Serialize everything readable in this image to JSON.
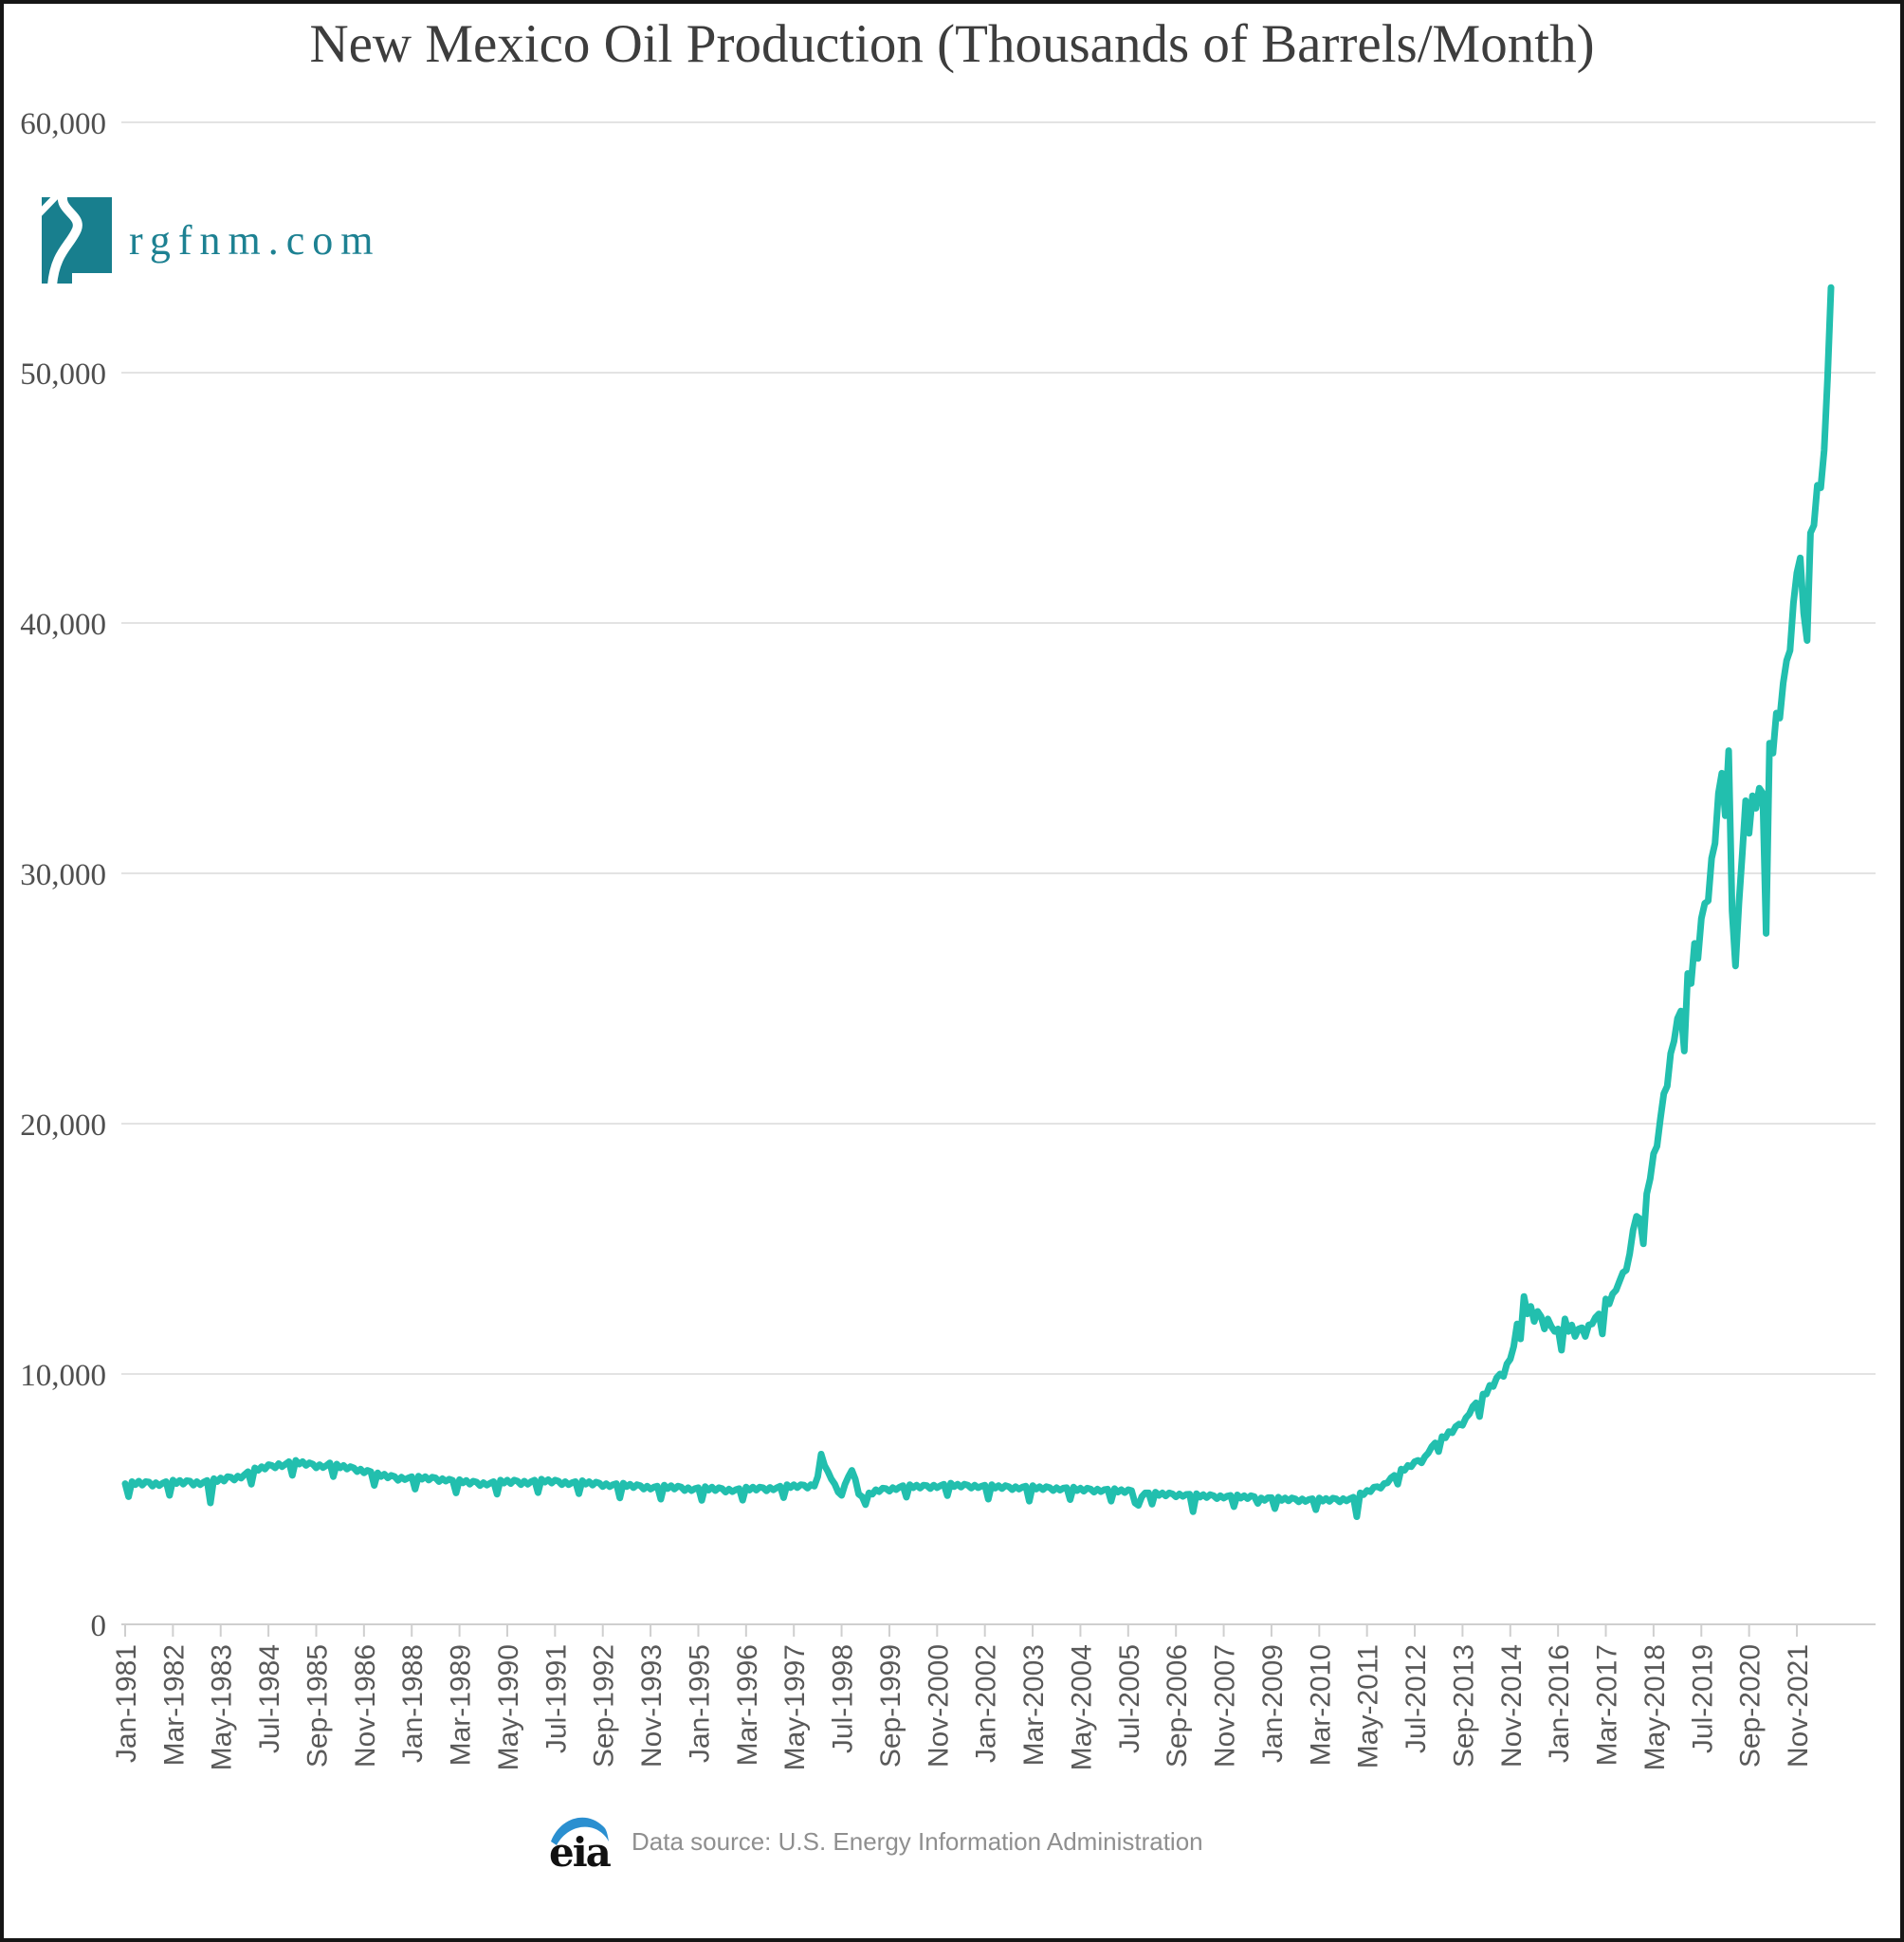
{
  "page": {
    "background": "#ffffff",
    "frame_color": "#161616"
  },
  "branding": {
    "site": "rgfnm.com",
    "logo_color": "#187f8e",
    "text_color": "#1d8192"
  },
  "source": {
    "logo_text": "eia",
    "logo_text_color": "#111111",
    "swoosh_color": "#2a8fd0",
    "text": "Data source: U.S. Energy Information Administration",
    "text_color": "#8f8f8f"
  },
  "chart_data": {
    "type": "line",
    "title": "New Mexico Oil Production (Thousands of Barrels/Month)",
    "series_name": "New Mexico oil production",
    "units": "thousand barrels per month",
    "frequency": "monthly",
    "x_start": "Jan-1981",
    "x_end": "Sep-2022",
    "x_tick_interval_months": 14,
    "x_tick_labels": [
      "Jan-1981",
      "Mar-1982",
      "May-1983",
      "Jul-1984",
      "Sep-1985",
      "Nov-1986",
      "Jan-1988",
      "Mar-1989",
      "May-1990",
      "Jul-1991",
      "Sep-1992",
      "Nov-1993",
      "Jan-1995",
      "Mar-1996",
      "May-1997",
      "Jul-1998",
      "Sep-1999",
      "Nov-2000",
      "Jan-2002",
      "Mar-2003",
      "May-2004",
      "Jul-2005",
      "Sep-2006",
      "Nov-2007",
      "Jan-2009",
      "Mar-2010",
      "May-2011",
      "Jul-2012",
      "Sep-2013",
      "Nov-2014",
      "Jan-2016",
      "Mar-2017",
      "May-2018",
      "Jul-2019",
      "Sep-2020",
      "Nov-2021"
    ],
    "y_tick_values": [
      0,
      10000,
      20000,
      30000,
      40000,
      50000,
      60000
    ],
    "y_tick_labels": [
      "0",
      "10,000",
      "20,000",
      "30,000",
      "40,000",
      "50,000",
      "60,000"
    ],
    "ylim": [
      0,
      60000
    ],
    "grid": "horizontal",
    "legend": "none",
    "line_color": "#22bfae",
    "gridline_color": "#e3e3e3",
    "axis_color": "#cfcfcf",
    "values": [
      5620,
      5100,
      5700,
      5580,
      5720,
      5560,
      5700,
      5680,
      5520,
      5660,
      5540,
      5640,
      5700,
      5150,
      5760,
      5620,
      5750,
      5600,
      5740,
      5720,
      5560,
      5700,
      5580,
      5680,
      5750,
      4850,
      5820,
      5700,
      5850,
      5720,
      5900,
      5880,
      5760,
      5920,
      5840,
      5980,
      6100,
      5600,
      6250,
      6150,
      6300,
      6200,
      6380,
      6350,
      6250,
      6420,
      6300,
      6400,
      6500,
      5950,
      6550,
      6400,
      6500,
      6350,
      6450,
      6400,
      6250,
      6380,
      6260,
      6350,
      6450,
      5900,
      6400,
      6250,
      6350,
      6200,
      6300,
      6250,
      6100,
      6200,
      6050,
      6150,
      6100,
      5550,
      6050,
      5900,
      6000,
      5850,
      5950,
      5900,
      5750,
      5880,
      5780,
      5850,
      5900,
      5400,
      5920,
      5800,
      5900,
      5760,
      5880,
      5850,
      5700,
      5820,
      5720,
      5800,
      5750,
      5250,
      5780,
      5650,
      5750,
      5600,
      5720,
      5680,
      5540,
      5660,
      5560,
      5640,
      5700,
      5200,
      5760,
      5640,
      5760,
      5620,
      5760,
      5720,
      5580,
      5720,
      5600,
      5700,
      5760,
      5260,
      5800,
      5680,
      5780,
      5640,
      5760,
      5720,
      5580,
      5700,
      5580,
      5660,
      5700,
      5220,
      5740,
      5600,
      5700,
      5560,
      5680,
      5640,
      5500,
      5620,
      5500,
      5580,
      5620,
      5050,
      5640,
      5500,
      5600,
      5460,
      5580,
      5540,
      5400,
      5520,
      5400,
      5480,
      5520,
      5000,
      5560,
      5420,
      5540,
      5400,
      5520,
      5480,
      5340,
      5460,
      5340,
      5420,
      5460,
      4950,
      5500,
      5360,
      5480,
      5340,
      5460,
      5420,
      5280,
      5400,
      5300,
      5380,
      5420,
      4960,
      5480,
      5360,
      5480,
      5360,
      5480,
      5460,
      5330,
      5470,
      5370,
      5460,
      5520,
      5060,
      5580,
      5460,
      5580,
      5460,
      5580,
      5560,
      5440,
      5580,
      5520,
      5900,
      6800,
      6350,
      6100,
      5800,
      5600,
      5280,
      5150,
      5600,
      5900,
      6150,
      5800,
      5200,
      5100,
      4780,
      5250,
      5200,
      5380,
      5300,
      5440,
      5420,
      5320,
      5460,
      5380,
      5480,
      5540,
      5080,
      5580,
      5460,
      5560,
      5440,
      5560,
      5540,
      5420,
      5560,
      5460,
      5540,
      5600,
      5140,
      5640,
      5500,
      5600,
      5480,
      5600,
      5560,
      5440,
      5560,
      5460,
      5520,
      5560,
      5000,
      5580,
      5440,
      5540,
      5420,
      5540,
      5500,
      5380,
      5500,
      5400,
      5480,
      5520,
      4920,
      5540,
      5400,
      5500,
      5380,
      5500,
      5460,
      5340,
      5460,
      5360,
      5440,
      5460,
      4980,
      5480,
      5340,
      5440,
      5320,
      5440,
      5400,
      5280,
      5400,
      5300,
      5380,
      5400,
      4920,
      5420,
      5280,
      5380,
      5260,
      5380,
      5340,
      4850,
      4750,
      5100,
      5250,
      5250,
      4800,
      5280,
      5150,
      5250,
      5130,
      5250,
      5210,
      5090,
      5210,
      5110,
      5190,
      5200,
      4500,
      5220,
      5080,
      5180,
      5060,
      5180,
      5140,
      5020,
      5140,
      5040,
      5120,
      5150,
      4700,
      5170,
      5040,
      5140,
      5020,
      5140,
      5100,
      4830,
      5050,
      4950,
      5060,
      5060,
      4620,
      5080,
      4950,
      5050,
      4930,
      5050,
      5010,
      4890,
      5010,
      4910,
      4990,
      5020,
      4580,
      5050,
      4920,
      5030,
      4910,
      5040,
      5010,
      4890,
      5020,
      4930,
      5020,
      5080,
      4300,
      5250,
      5180,
      5350,
      5300,
      5480,
      5500,
      5440,
      5620,
      5650,
      5850,
      5950,
      5600,
      6200,
      6150,
      6350,
      6300,
      6500,
      6550,
      6450,
      6700,
      6850,
      7100,
      7250,
      6900,
      7500,
      7450,
      7700,
      7650,
      7900,
      8000,
      7950,
      8250,
      8400,
      8700,
      8850,
      8300,
      9200,
      9200,
      9550,
      9500,
      9850,
      10000,
      9900,
      10400,
      10600,
      11100,
      12000,
      11400,
      13100,
      12400,
      12700,
      12100,
      12500,
      12300,
      11800,
      12200,
      11900,
      11700,
      11800,
      10950,
      12200,
      11700,
      11960,
      11500,
      11800,
      11850,
      11500,
      11960,
      12000,
      12260,
      12400,
      11600,
      13000,
      12800,
      13200,
      13350,
      13700,
      14050,
      14150,
      14800,
      15750,
      16300,
      16200,
      15200,
      17200,
      17800,
      18800,
      19100,
      20200,
      21200,
      21500,
      22800,
      23300,
      24200,
      24500,
      22900,
      26000,
      25600,
      27200,
      26600,
      28200,
      28800,
      28900,
      30600,
      31200,
      33200,
      34000,
      32300,
      34900,
      28500,
      26300,
      28800,
      30800,
      32900,
      31600,
      33100,
      32600,
      33400,
      33200,
      27600,
      35200,
      34800,
      36400,
      36200,
      37600,
      38500,
      38900,
      40800,
      42000,
      42600,
      40400,
      39300,
      43600,
      43900,
      45500,
      45400,
      46900,
      49800,
      53400
    ]
  }
}
